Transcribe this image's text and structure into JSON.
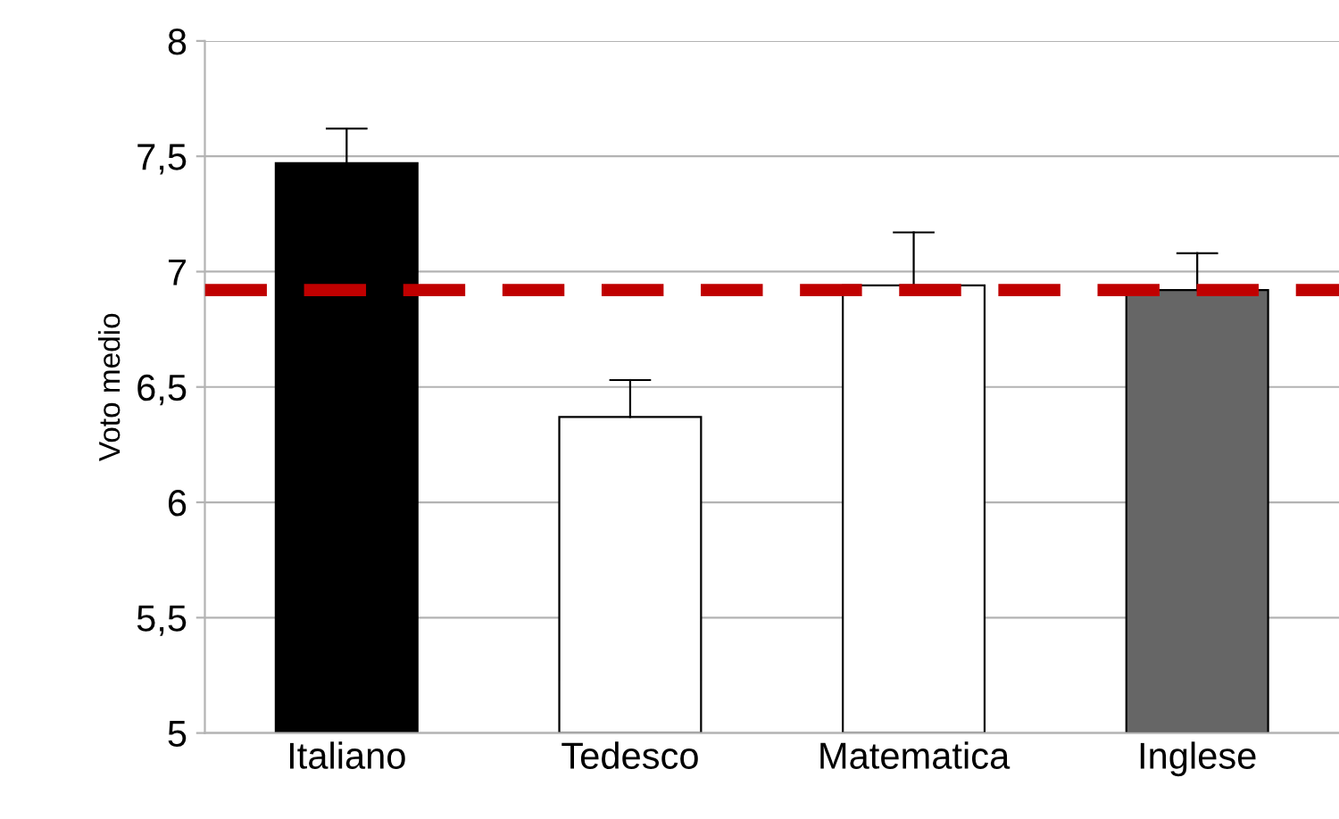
{
  "chart_data": {
    "type": "bar",
    "ylabel": "Voto medio",
    "categories": [
      "Italiano",
      "Tedesco",
      "Matematica",
      "Inglese"
    ],
    "values": [
      7.47,
      6.37,
      6.94,
      6.92
    ],
    "colors": [
      "#000000",
      "#ffffff",
      "#ffffff",
      "#666666"
    ],
    "errors": [
      [
        7.47,
        7.62
      ],
      [
        6.37,
        6.53
      ],
      [
        6.94,
        7.17
      ],
      [
        6.92,
        7.08
      ]
    ],
    "ylim": [
      5,
      8
    ],
    "yticks": [
      5,
      {
        "value": 5.5,
        "label": "5,5"
      },
      6,
      {
        "value": 6.5,
        "label": "6,5"
      },
      7,
      {
        "value": 7.5,
        "label": "7,5"
      },
      8
    ],
    "grid": "y",
    "ref_lines": [
      {
        "axis": "y",
        "value": 6.92,
        "color": "#c00000",
        "line_style": "dashed"
      }
    ]
  }
}
